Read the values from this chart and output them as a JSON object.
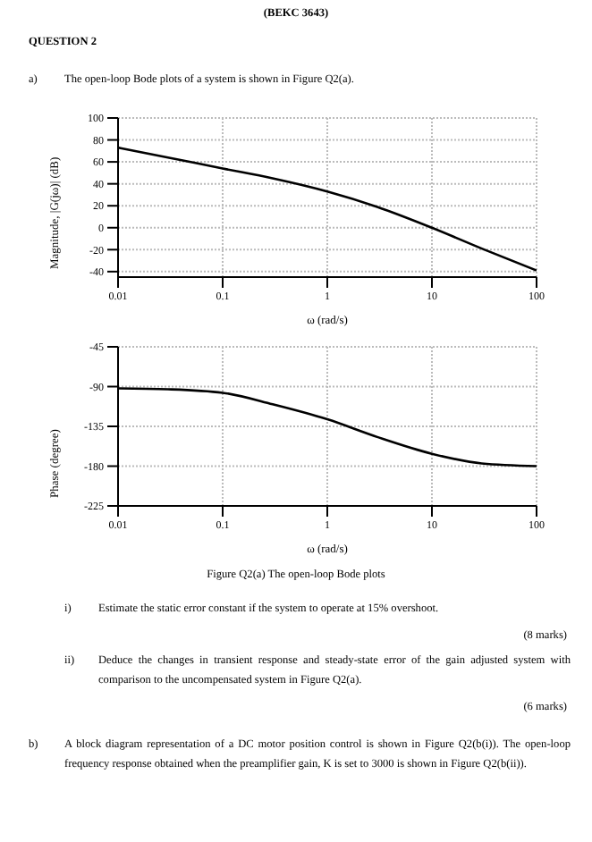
{
  "chart_data": [
    {
      "type": "line",
      "xlabel": "ω (rad/s)",
      "ylabel": "Magnitude, |G(jω)| (dB)",
      "log": "x",
      "grid": true,
      "x": [
        0.01,
        0.03,
        0.1,
        0.3,
        1,
        3,
        10,
        30,
        100
      ],
      "series": [
        {
          "color": "#000000",
          "values": [
            73,
            64,
            54,
            45,
            33,
            19,
            0,
            -19,
            -39
          ]
        }
      ],
      "xlim": [
        0.01,
        100
      ],
      "xticks": [
        0.01,
        0.1,
        1,
        10,
        100
      ],
      "ylim": [
        -45,
        100
      ],
      "yticks": [
        -40,
        -20,
        0,
        20,
        40,
        60,
        80,
        100
      ],
      "annotations": [
        "(BEKC 3643)",
        "QUESTION 2",
        "a)",
        "The open-loop Bode plots of a system is shown in Figure Q2(a)."
      ]
    },
    {
      "type": "line",
      "xlabel": "ω (rad/s)",
      "ylabel": "Phase (degree)",
      "log": "x",
      "grid": true,
      "x": [
        0.01,
        0.03,
        0.1,
        0.3,
        1,
        3,
        10,
        30,
        100
      ],
      "series": [
        {
          "color": "#000000",
          "values": [
            -92,
            -93,
            -97,
            -110,
            -127,
            -147,
            -166,
            -177,
            -180
          ]
        }
      ],
      "xlim": [
        0.01,
        100
      ],
      "xticks": [
        0.01,
        0.1,
        1,
        10,
        100
      ],
      "ylim": [
        -225,
        -45
      ],
      "yticks": [
        -225,
        -180,
        -135,
        -90,
        -45
      ],
      "annotations": [
        "Figure Q2(a) The open-loop Bode plots",
        "i)",
        "Estimate the static error constant if the system to operate at 15% overshoot.",
        "(8 marks)",
        "ii)",
        "Deduce the changes in transient response and steady-state error of the gain adjusted system with comparison to the uncompensated system in Figure Q2(a).",
        "(6 marks)",
        "b)",
        "A block diagram representation of a DC motor position control is shown in Figure Q2(b(i)). The open-loop frequency response obtained when the preamplifier gain, K is set to 3000 is shown in Figure Q2(b(ii))."
      ]
    }
  ]
}
